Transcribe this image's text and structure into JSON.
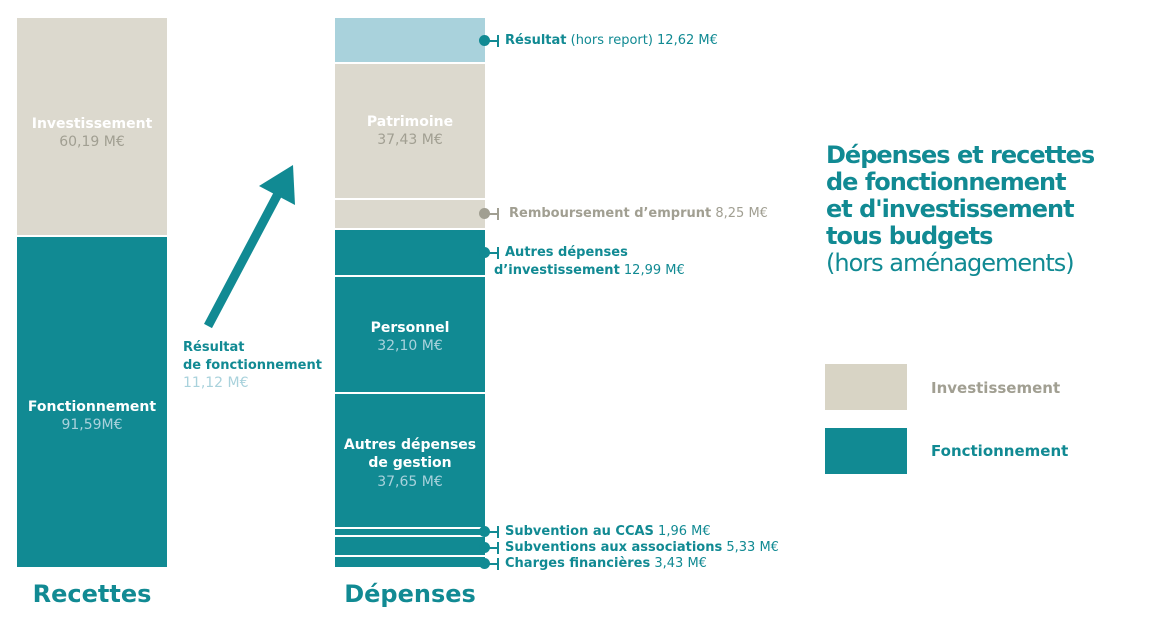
{
  "colors": {
    "investissement": "#dcd9ce",
    "fonctionnement": "#118a93",
    "resultat": "#a9d2dc",
    "remboursement_text": "#a19f92",
    "light_value": "#a9d2dc",
    "dark_text": "#118a93"
  },
  "title": {
    "line1": "Dépenses et recettes",
    "line2": "de fonctionnement",
    "line3": "et d'investissement",
    "line4": "tous budgets",
    "line5": "(hors aménagements)"
  },
  "legend": [
    {
      "label": "Investissement",
      "color": "#d8d4c5"
    },
    {
      "label": "Fonctionnement",
      "color": "#118a93"
    }
  ],
  "arrow_label": {
    "line1": "Résultat",
    "line2": "de fonctionnement",
    "value": "11,12 M€"
  },
  "chart_data": {
    "type": "bar",
    "units": "M€",
    "categories": [
      "Recettes",
      "Dépenses"
    ],
    "recettes": [
      {
        "label": "Fonctionnement",
        "value_text": "91,59M€",
        "value": 91.59
      },
      {
        "label": "Investissement",
        "value_text": "60,19 M€",
        "value": 60.19
      }
    ],
    "depenses": [
      {
        "label": "Charges financières",
        "value_text": "3,43 M€",
        "value": 3.43
      },
      {
        "label": "Subventions aux associations",
        "value_text": "5,33 M€",
        "value": 5.33
      },
      {
        "label": "Subvention au CCAS",
        "value_text": "1,96 M€",
        "value": 1.96
      },
      {
        "label": "Autres dépenses de gestion",
        "value_text": "37,65 M€",
        "value": 37.65
      },
      {
        "label": "Personnel",
        "value_text": "32,10 M€",
        "value": 32.1
      },
      {
        "label": "Autres dépenses d'investissement",
        "value_text": "12,99 M€",
        "value": 12.99
      },
      {
        "label": "Remboursement d'emprunt",
        "value_text": "8,25 M€",
        "value": 8.25
      },
      {
        "label": "Patrimoine",
        "value_text": "37,43 M€",
        "value": 37.43
      },
      {
        "label": "Résultat (hors report)",
        "value_text": "12,62 M€",
        "value": 12.62
      }
    ],
    "inner_labels": {
      "recettes_inv": {
        "label": "Investissement",
        "value": "60,19 M€"
      },
      "recettes_fonc": {
        "label": "Fonctionnement",
        "value": "91,59M€"
      },
      "patrimoine": {
        "label": "Patrimoine",
        "value": "37,43 M€"
      },
      "personnel": {
        "label": "Personnel",
        "value": "32,10 M€"
      },
      "gestion": {
        "line1": "Autres dépenses",
        "line2": "de gestion",
        "value": "37,65 M€"
      }
    },
    "callouts": {
      "resultat": {
        "bold": "Résultat",
        "rest": " (hors report) 12,62 M€"
      },
      "remboursement": {
        "bold": "Remboursement d’emprunt",
        "rest": " 8,25 M€"
      },
      "autres_inv": {
        "line1": "Autres dépenses",
        "line2_bold": "d’investissement",
        "rest": " 12,99 M€"
      },
      "ccas": {
        "bold": "Subvention au CCAS",
        "rest": " 1,96 M€"
      },
      "associations": {
        "bold": "Subventions aux associations",
        "rest": " 5,33 M€"
      },
      "financieres": {
        "bold": "Charges financières",
        "rest": " 3,43 M€"
      }
    }
  }
}
